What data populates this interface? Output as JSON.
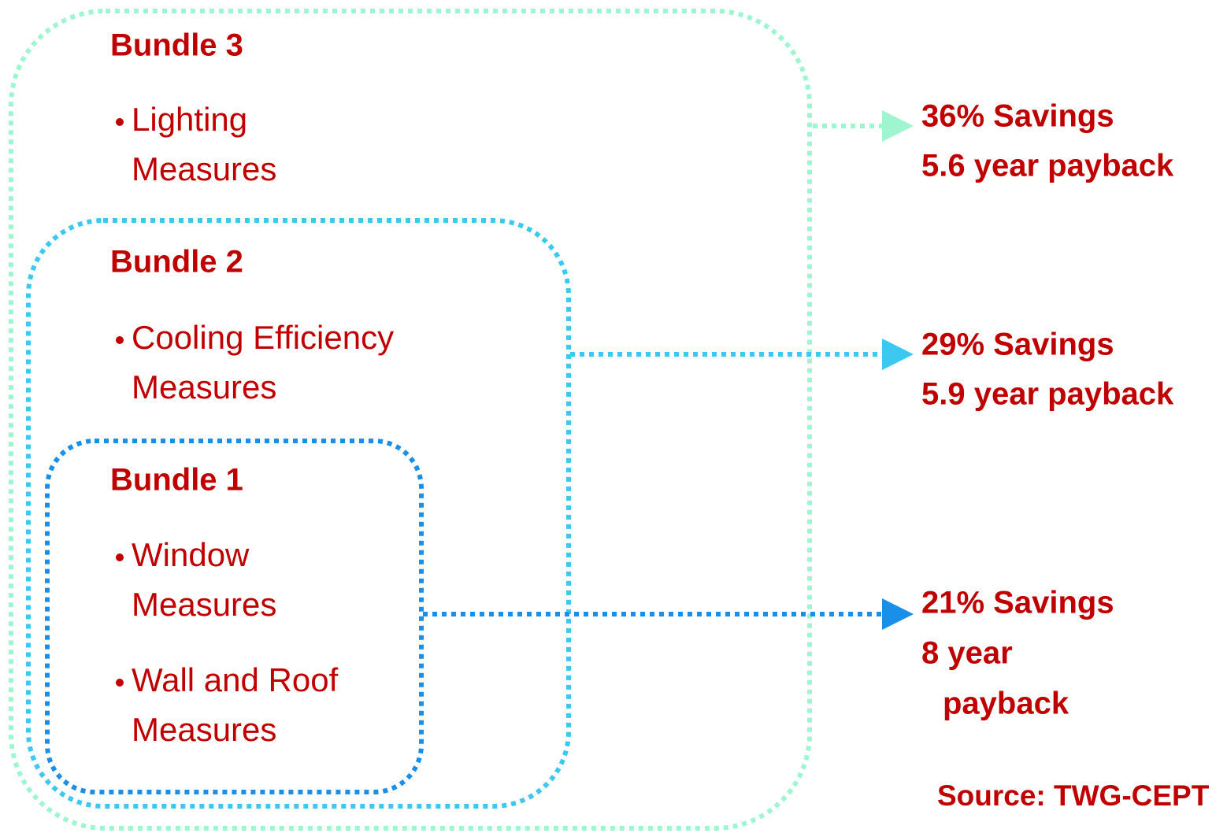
{
  "bundles": [
    {
      "title": "Bundle 3",
      "items": [
        [
          "Lighting",
          "Measures"
        ]
      ],
      "results": [
        "36% Savings",
        "5.6 year payback"
      ]
    },
    {
      "title": "Bundle 2",
      "items": [
        [
          "Cooling Efficiency",
          "Measures"
        ]
      ],
      "results": [
        "29% Savings",
        "5.9 year payback"
      ]
    },
    {
      "title": "Bundle 1",
      "items": [
        [
          "Window",
          "Measures"
        ],
        [
          "Wall and Roof",
          "Measures"
        ]
      ],
      "results": [
        "21% Savings",
        "8 year",
        "payback"
      ]
    }
  ],
  "source": "Source: TWG-CEPT"
}
